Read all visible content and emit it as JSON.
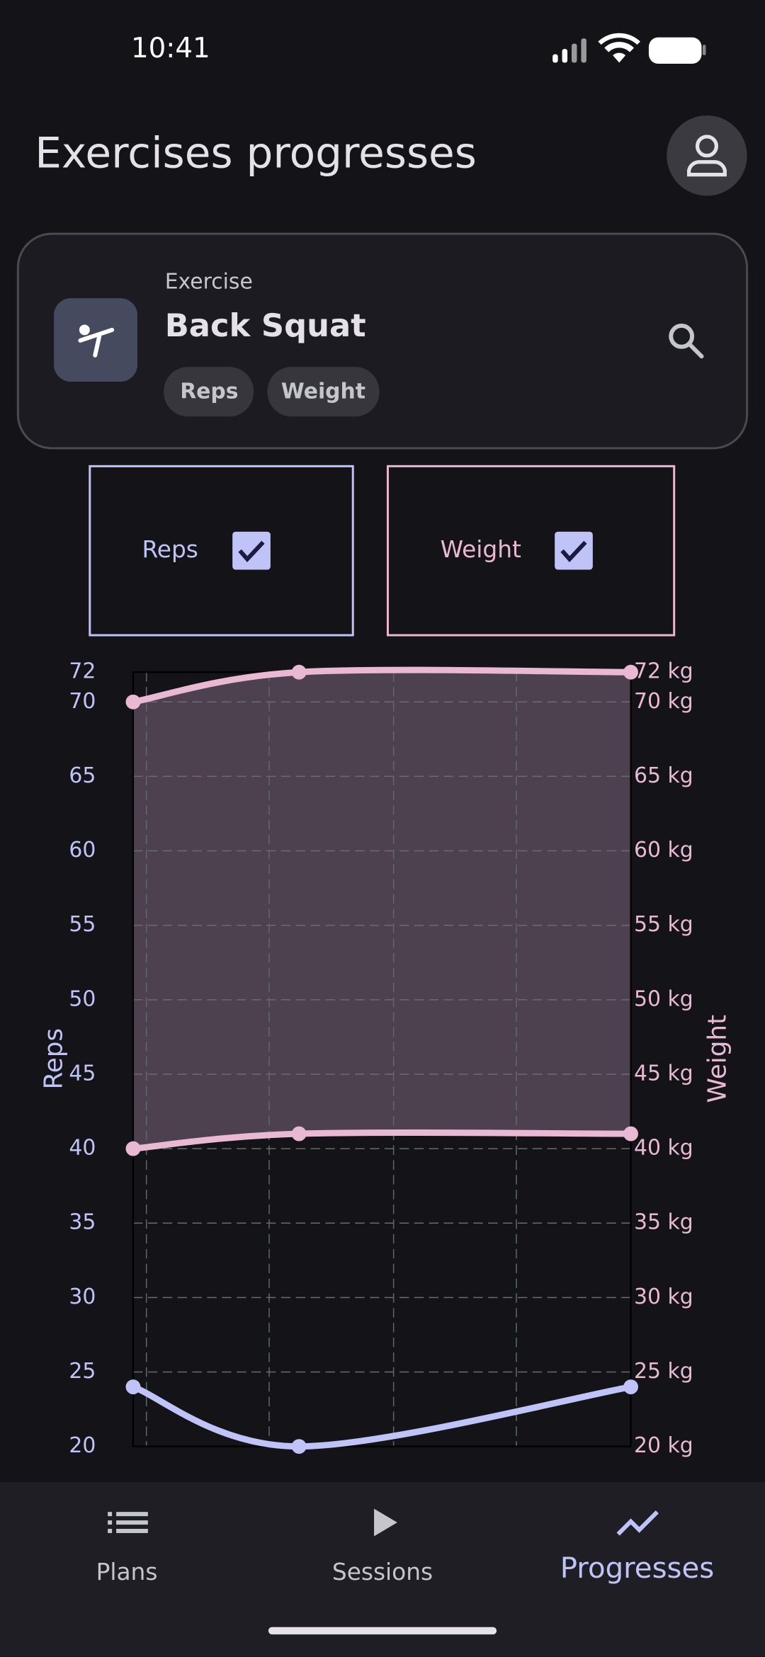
{
  "status_bar": {
    "time": "10:41"
  },
  "header": {
    "title": "Exercises progresses"
  },
  "exercise_card": {
    "label": "Exercise",
    "name": "Back Squat",
    "tags": [
      "Reps",
      "Weight"
    ]
  },
  "toggles": [
    {
      "label": "Reps"
    },
    {
      "label": "Weight"
    }
  ],
  "chart_data": {
    "type": "line",
    "ylabel": "Reps",
    "y2label": "Weight",
    "x": [
      0,
      1,
      3
    ],
    "xlim": [
      0,
      3
    ],
    "xticks": [
      0.08,
      0.82,
      1.57,
      2.31
    ],
    "ylim": [
      20,
      72
    ],
    "yticks": [
      20,
      25,
      30,
      35,
      40,
      45,
      50,
      55,
      60,
      65,
      70,
      72
    ],
    "y2lim": [
      20,
      72
    ],
    "y2ticks": [
      {
        "value": 20,
        "label": "20 kg"
      },
      {
        "value": 25,
        "label": "25 kg"
      },
      {
        "value": 30,
        "label": "30 kg"
      },
      {
        "value": 35,
        "label": "35 kg"
      },
      {
        "value": 40,
        "label": "40 kg"
      },
      {
        "value": 45,
        "label": "45 kg"
      },
      {
        "value": 50,
        "label": "50 kg"
      },
      {
        "value": 55,
        "label": "55 kg"
      },
      {
        "value": 60,
        "label": "60 kg"
      },
      {
        "value": 65,
        "label": "65 kg"
      },
      {
        "value": 70,
        "label": "70 kg"
      },
      {
        "value": 72,
        "label": "72 kg"
      }
    ],
    "grid": true,
    "series": [
      {
        "name": "Reps",
        "color": "#bfc3f8",
        "values": [
          24,
          20,
          24
        ]
      },
      {
        "name": "Weight",
        "color": "#e9b9d3",
        "axis": "y2",
        "values": [
          70,
          72,
          72
        ],
        "low": [
          40,
          41,
          41
        ]
      }
    ]
  },
  "nav": {
    "items": [
      "Plans",
      "Sessions",
      "Progresses"
    ]
  }
}
